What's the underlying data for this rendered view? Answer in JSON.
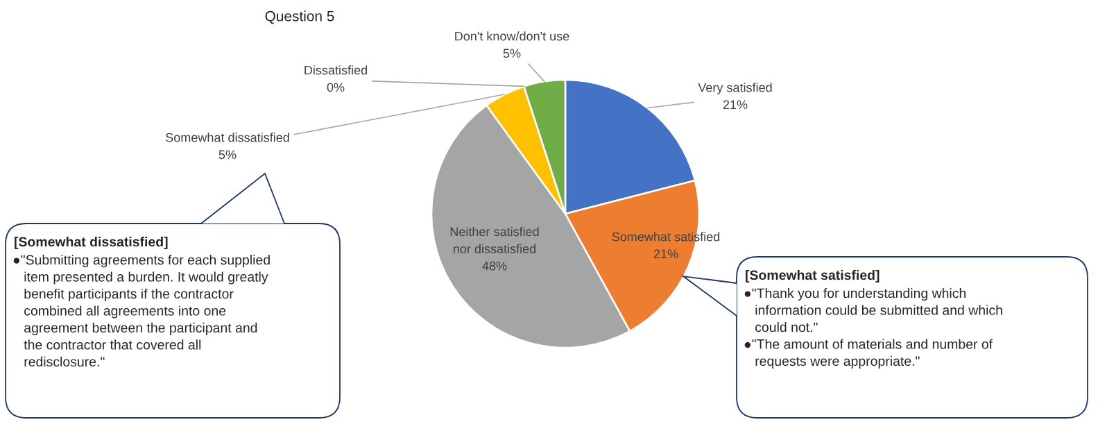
{
  "chart_data": {
    "type": "pie",
    "title": "Question 5",
    "categories": [
      "Very satisfied",
      "Somewhat satisfied",
      "Neither satisfied\nnor dissatisfied",
      "Somewhat dissatisfied",
      "Dissatisfied",
      "Don't know/don't use"
    ],
    "values": [
      21,
      21,
      48,
      5,
      0,
      5
    ],
    "value_labels": [
      "21%",
      "21%",
      "48%",
      "5%",
      "0%",
      "5%"
    ],
    "colors": [
      "#4472c4",
      "#ed7d31",
      "#a5a5a5",
      "#ffc000",
      "#5b9bd5",
      "#70ad47"
    ],
    "annotations": [
      "[Somewhat dissatisfied]\n●\"Submitting agreements for each supplied\n   item presented a burden. It would greatly\n   benefit participants if the contractor\n   combined all agreements into one\n   agreement between the participant and\n   the contractor that covered all\n   redisclosure.\"",
      "[Somewhat satisfied]\n●\"Thank you for understanding which\n   information could be submitted and which\n   could not.\"\n●\"The amount of materials and number of\n   requests were appropriate.\""
    ]
  }
}
